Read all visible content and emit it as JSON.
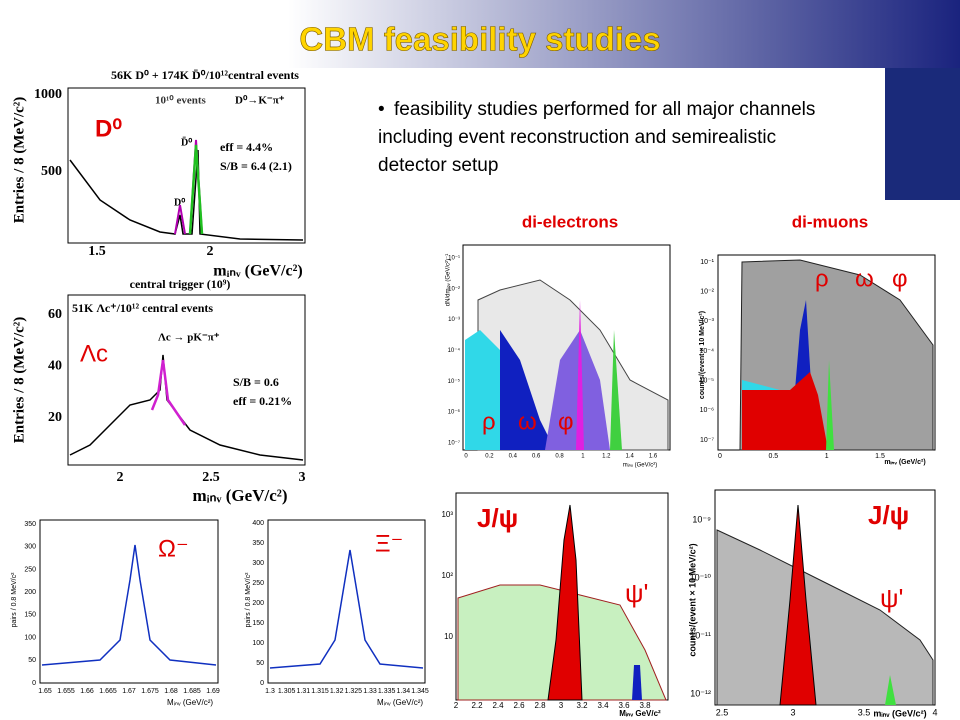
{
  "title": "CBM feasibility studies",
  "bullet": "feasibility studies performed for all major channels including event reconstruction and semirealistic detector setup",
  "columns": [
    "di-electrons",
    "di-muons"
  ],
  "panels": [
    {
      "header": "56K D⁰ + 174K D̄⁰/10¹²central events",
      "events": "10¹⁰ events",
      "decay": "D⁰→K⁻π⁺",
      "particle": "D⁰",
      "annotations": [
        "eff = 4.4%",
        "S/B = 6.4 (2.1)"
      ],
      "peak_labels": [
        "D̄⁰",
        "D⁰"
      ],
      "ylabel": "Entries / 8 (MeV/c²)",
      "xlabel": "mᵢₙᵥ (GeV/c²)",
      "xticks": [
        "1.5",
        "2"
      ],
      "yticks": [
        "1000",
        "500"
      ]
    },
    {
      "header": "central trigger (10⁹)",
      "subheader": "51K Λc⁺/10¹² central events",
      "decay": "Λc → pK⁻π⁺",
      "particle": "Λc",
      "annotations": [
        "S/B = 0.6",
        "eff = 0.21%"
      ],
      "ylabel": "Entries / 8 (MeV/c²)",
      "xlabel": "mᵢₙᵥ (GeV/c²)",
      "xticks": [
        "2",
        "2.5",
        "3"
      ],
      "yticks": [
        "60",
        "40",
        "20"
      ]
    },
    {
      "particle": "Ω⁻",
      "ylabel": "pairs / 0.8 MeV/c²",
      "xlabel": "Mᵢₙᵥ (GeV/c²)",
      "xticks": [
        "1.65",
        "1.655",
        "1.66",
        "1.665",
        "1.67",
        "1.675",
        "1.68",
        "1.685",
        "1.69"
      ],
      "yticks": [
        "350",
        "300",
        "250",
        "200",
        "150",
        "100",
        "50",
        "0"
      ]
    },
    {
      "particle": "Ξ⁻",
      "ylabel": "pairs / 0.8 MeV/c²",
      "xlabel": "Mᵢₙᵥ (GeV/c²)",
      "xticks": [
        "1.3",
        "1.305",
        "1.31",
        "1.315",
        "1.32",
        "1.325",
        "1.33",
        "1.335",
        "1.34",
        "1.345"
      ],
      "yticks": [
        "400",
        "350",
        "300",
        "250",
        "200",
        "150",
        "100",
        "50",
        "0"
      ]
    },
    {
      "labels": [
        "ρ",
        "ω",
        "φ"
      ],
      "ylabel": "dN/dmᵢₙᵥ (GeV/c²)⁻¹",
      "xlabel": "mᵢₙᵥ (GeV/c²)",
      "xticks": [
        "0",
        "0.2",
        "0.4",
        "0.6",
        "0.8",
        "1",
        "1.2",
        "1.4",
        "1.6"
      ],
      "yticks": [
        "10⁻¹",
        "10⁻²",
        "10⁻³",
        "10⁻⁴",
        "10⁻⁵",
        "10⁻⁶",
        "10⁻⁷"
      ]
    },
    {
      "labels": [
        "ρ",
        "ω",
        "φ"
      ],
      "ylabel": "counts/(event × 10 MeV/c²)",
      "xlabel": "mᵢₙᵥ (GeV/c²)",
      "xticks": [
        "0",
        "0.5",
        "1",
        "1.5"
      ],
      "yticks": [
        "10⁻¹",
        "10⁻²",
        "10⁻³",
        "10⁻⁴",
        "10⁻⁵",
        "10⁻⁶",
        "10⁻⁷"
      ]
    },
    {
      "labels": [
        "J/ψ",
        "ψ'"
      ],
      "xlabel": "Mᵢₙᵥ GeV/c²",
      "xticks": [
        "2",
        "2.2",
        "2.4",
        "2.6",
        "2.8",
        "3",
        "3.2",
        "3.4",
        "3.6",
        "3.8"
      ],
      "yticks": [
        "10³",
        "10²",
        "10"
      ]
    },
    {
      "labels": [
        "J/ψ",
        "ψ'"
      ],
      "ylabel": "counts/(event × 10 MeV/c²)",
      "xlabel": "mᵢₙᵥ (GeV/c²)",
      "xticks": [
        "2.5",
        "3",
        "3.5",
        "4"
      ],
      "yticks": [
        "10⁻⁹",
        "10⁻¹⁰",
        "10⁻¹¹",
        "10⁻¹²"
      ]
    }
  ]
}
